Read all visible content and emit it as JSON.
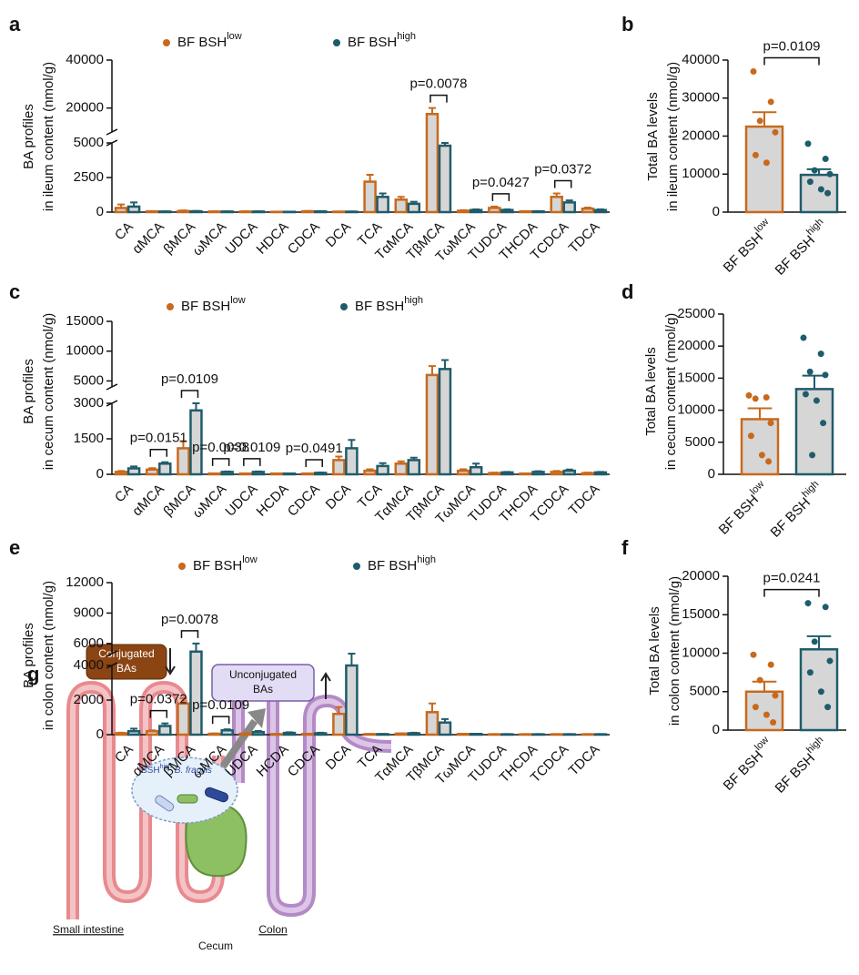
{
  "chart_data": [
    {
      "type": "bar",
      "panel": "a",
      "ylabel": [
        "BA profiles",
        "in ileum content (nmol/g)"
      ],
      "categories": [
        "CA",
        "αMCA",
        "βMCA",
        "ωMCA",
        "UDCA",
        "HDCA",
        "CDCA",
        "DCA",
        "TCA",
        "TαMCA",
        "TβMCA",
        "TωMCA",
        "TUDCA",
        "THCDA",
        "TCDCA",
        "TDCA"
      ],
      "series": [
        {
          "name": "BF BSH",
          "name_sup": "low",
          "color": "#c8691c",
          "values": [
            300,
            50,
            80,
            40,
            40,
            20,
            60,
            30,
            2200,
            900,
            17500,
            100,
            300,
            50,
            1100,
            250
          ],
          "errors": [
            250,
            20,
            40,
            20,
            20,
            10,
            20,
            10,
            500,
            200,
            2500,
            40,
            100,
            20,
            250,
            80
          ]
        },
        {
          "name": "BF BSH",
          "name_sup": "high",
          "color": "#1f5c6b",
          "values": [
            400,
            40,
            60,
            40,
            40,
            20,
            50,
            30,
            1100,
            600,
            4800,
            150,
            150,
            50,
            700,
            150
          ],
          "errors": [
            300,
            15,
            20,
            15,
            15,
            10,
            20,
            10,
            250,
            150,
            600,
            50,
            50,
            20,
            150,
            50
          ]
        }
      ],
      "ylim": [
        0,
        40000
      ],
      "ybreak": [
        5000,
        10000
      ],
      "yticks": [
        0,
        2500,
        5000,
        20000,
        40000
      ],
      "significance": [
        {
          "category": 10,
          "label": "p=0.0078"
        },
        {
          "category": 12,
          "label": "p=0.0427"
        },
        {
          "category": 14,
          "label": "p=0.0372"
        }
      ]
    },
    {
      "type": "bar",
      "panel": "b",
      "ylabel": [
        "Total BA levels",
        "in ileum content (nmol/g)"
      ],
      "categories": [
        "BF BSH",
        "BF BSH"
      ],
      "category_sup": [
        "low",
        "high"
      ],
      "colors": [
        "#c8691c",
        "#1f5c6b"
      ],
      "values": [
        22500,
        9800
      ],
      "errors": [
        3800,
        1500
      ],
      "points": [
        [
          37000,
          29000,
          24000,
          21000,
          15000,
          13000
        ],
        [
          18000,
          14000,
          11000,
          10000,
          8000,
          6000,
          5000
        ]
      ],
      "ylim": [
        0,
        40000
      ],
      "yticks": [
        0,
        10000,
        20000,
        30000,
        40000
      ],
      "significance": [
        {
          "label": "p=0.0109"
        }
      ]
    },
    {
      "type": "bar",
      "panel": "c",
      "ylabel": [
        "BA profiles",
        "in cecum content (nmol/g)"
      ],
      "categories": [
        "CA",
        "αMCA",
        "βMCA",
        "ωMCA",
        "UDCA",
        "HCDA",
        "CDCA",
        "DCA",
        "TCA",
        "TαMCA",
        "TβMCA",
        "TωMCA",
        "TUDCA",
        "THCDA",
        "TCDCA",
        "TDCA"
      ],
      "series": [
        {
          "name": "BF BSH",
          "name_sup": "low",
          "color": "#c8691c",
          "values": [
            100,
            200,
            1100,
            30,
            30,
            30,
            30,
            600,
            150,
            450,
            6000,
            150,
            50,
            30,
            100,
            50
          ],
          "errors": [
            40,
            60,
            300,
            10,
            10,
            10,
            10,
            150,
            60,
            100,
            1500,
            60,
            20,
            10,
            40,
            20
          ]
        },
        {
          "name": "BF BSH",
          "name_sup": "high",
          "color": "#1f5c6b",
          "values": [
            250,
            450,
            2700,
            100,
            100,
            30,
            60,
            1100,
            350,
            600,
            7000,
            300,
            80,
            100,
            150,
            80
          ],
          "errors": [
            80,
            60,
            400,
            20,
            20,
            10,
            15,
            350,
            120,
            100,
            1500,
            150,
            20,
            30,
            50,
            20
          ]
        }
      ],
      "ylim": [
        0,
        15000
      ],
      "ybreak": [
        3000,
        4000
      ],
      "yticks": [
        0,
        1500,
        3000,
        5000,
        10000,
        15000
      ],
      "significance": [
        {
          "category": 1,
          "label": "p=0.0151"
        },
        {
          "category": 2,
          "label": "p=0.0109"
        },
        {
          "category": 3,
          "label": "p=0.0038"
        },
        {
          "category": 4,
          "label": "p=0.0109"
        },
        {
          "category": 6,
          "label": "p=0.0491"
        }
      ]
    },
    {
      "type": "bar",
      "panel": "d",
      "ylabel": [
        "Total BA levels",
        "in cecum content (nmol/g)"
      ],
      "categories": [
        "BF BSH",
        "BF BSH"
      ],
      "category_sup": [
        "low",
        "high"
      ],
      "colors": [
        "#c8691c",
        "#1f5c6b"
      ],
      "values": [
        8600,
        13300
      ],
      "errors": [
        1700,
        2100
      ],
      "points": [
        [
          12300,
          12000,
          11800,
          8000,
          6000,
          3000,
          2000
        ],
        [
          21300,
          18800,
          16000,
          15500,
          12500,
          11500,
          8000,
          3000
        ]
      ],
      "ylim": [
        0,
        25000
      ],
      "yticks": [
        0,
        5000,
        10000,
        15000,
        20000,
        25000
      ]
    },
    {
      "type": "bar",
      "panel": "e",
      "ylabel": [
        "BA profiles",
        "in colon content (nmol/g)"
      ],
      "categories": [
        "CA",
        "αMCA",
        "βMCA",
        "ωMCA",
        "UDCA",
        "HCDA",
        "CDCA",
        "DCA",
        "TCA",
        "TαMCA",
        "TβMCA",
        "TωMCA",
        "TUDCA",
        "THCDA",
        "TCDCA",
        "TDCA"
      ],
      "series": [
        {
          "name": "BF BSH",
          "name_sup": "low",
          "color": "#c8691c",
          "values": [
            80,
            200,
            1800,
            50,
            60,
            30,
            40,
            1200,
            30,
            60,
            1300,
            40,
            20,
            20,
            20,
            20
          ],
          "errors": [
            30,
            50,
            300,
            20,
            20,
            10,
            15,
            400,
            10,
            20,
            500,
            15,
            10,
            10,
            10,
            10
          ]
        },
        {
          "name": "BF BSH",
          "name_sup": "high",
          "color": "#1f5c6b",
          "values": [
            200,
            500,
            5200,
            250,
            150,
            100,
            80,
            4000,
            30,
            80,
            700,
            40,
            20,
            20,
            20,
            20
          ],
          "errors": [
            150,
            150,
            800,
            60,
            60,
            40,
            30,
            1000,
            10,
            30,
            200,
            15,
            10,
            10,
            10,
            10
          ]
        }
      ],
      "ylim": [
        0,
        12000
      ],
      "ybreak": [
        4000,
        5000
      ],
      "yticks": [
        0,
        2000,
        4000,
        6000,
        9000,
        12000
      ],
      "significance": [
        {
          "category": 1,
          "label": "p=0.0372"
        },
        {
          "category": 2,
          "label": "p=0.0078"
        },
        {
          "category": 3,
          "label": "p=0.0109"
        }
      ]
    },
    {
      "type": "bar",
      "panel": "f",
      "ylabel": [
        "Total BA levels",
        "in colon content  (nmol/g)"
      ],
      "categories": [
        "BF BSH",
        "BF BSH"
      ],
      "category_sup": [
        "low",
        "high"
      ],
      "colors": [
        "#c8691c",
        "#1f5c6b"
      ],
      "values": [
        5000,
        10500
      ],
      "errors": [
        1300,
        1700
      ],
      "points": [
        [
          9800,
          8500,
          6500,
          4500,
          3000,
          2000,
          1000
        ],
        [
          16500,
          16000,
          11500,
          9000,
          7500,
          5000,
          3000
        ]
      ],
      "ylim": [
        0,
        20000
      ],
      "yticks": [
        0,
        5000,
        10000,
        15000,
        20000
      ],
      "significance": [
        {
          "label": "p=0.0241"
        }
      ]
    }
  ],
  "diagram": {
    "panel": "g",
    "conjugated": [
      "Conjugated",
      "BAs"
    ],
    "unconjugated": [
      "Unconjugated",
      "BAs"
    ],
    "bsh": "BSH",
    "bsh_sup": "high",
    "species": "B. fragilis",
    "small_intestine": "Small intestine",
    "cecum": "Cecum",
    "colon": "Colon"
  }
}
